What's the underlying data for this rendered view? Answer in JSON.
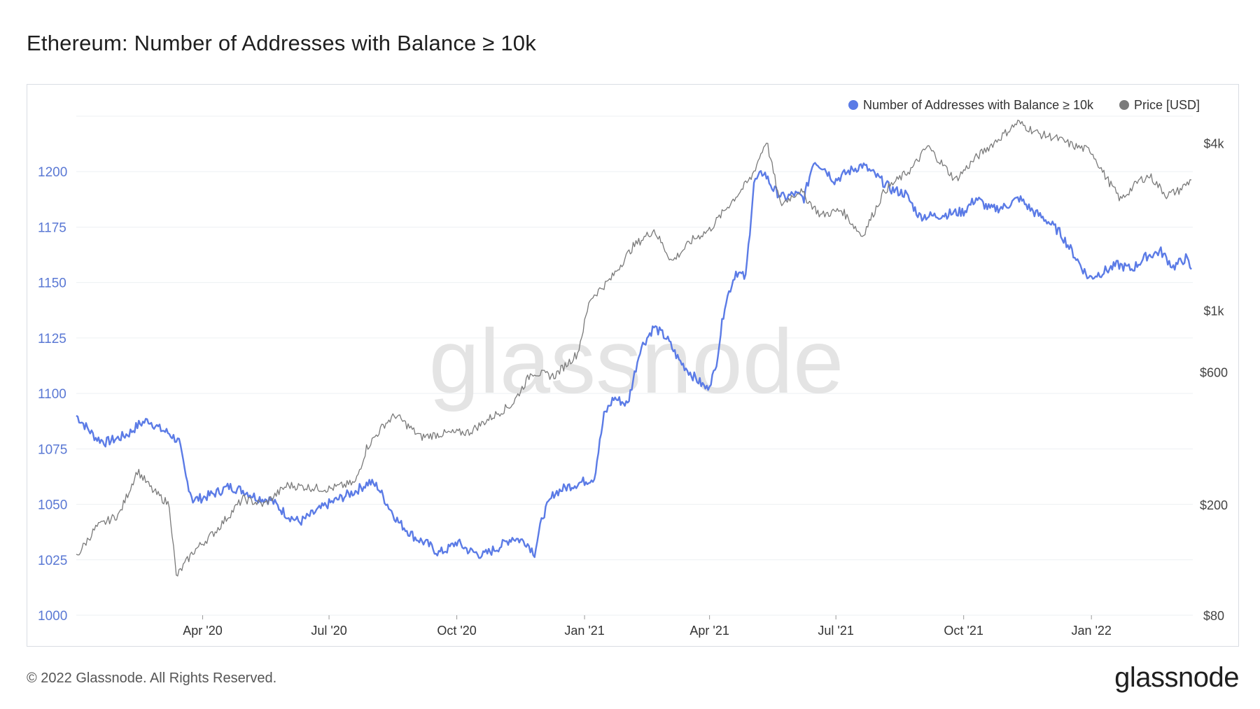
{
  "title": "Ethereum: Number of Addresses with Balance ≥ 10k",
  "footer": {
    "copyright": "© 2022 Glassnode. All Rights Reserved.",
    "logo": "glassnode"
  },
  "watermark": "glassnode",
  "chart_data": {
    "type": "line",
    "title": "Ethereum: Number of Addresses with Balance ≥ 10k",
    "legend_placement": "top-right",
    "grid": true,
    "x_tick_labels": [
      "Apr '20",
      "Jul '20",
      "Oct '20",
      "Jan '21",
      "Apr '21",
      "Jul '21",
      "Oct '21",
      "Jan '22"
    ],
    "x_tick_dates": [
      "2020-04-01",
      "2020-07-01",
      "2020-10-01",
      "2021-01-01",
      "2021-04-01",
      "2021-07-01",
      "2021-10-01",
      "2022-01-01"
    ],
    "xlim": [
      "2020-01-01",
      "2022-03-15"
    ],
    "y_left": {
      "label": "",
      "ticks": [
        "1000",
        "1025",
        "1050",
        "1075",
        "1100",
        "1125",
        "1150",
        "1175",
        "1200"
      ],
      "ylim": [
        1000,
        1225
      ]
    },
    "y_right": {
      "label": "",
      "scale": "log",
      "ticks": [
        {
          "label": "$80",
          "value": 80
        },
        {
          "label": "$200",
          "value": 200
        },
        {
          "label": "$600",
          "value": 600
        },
        {
          "label": "$1k",
          "value": 1000
        },
        {
          "label": "$4k",
          "value": 4000
        }
      ],
      "ylim": [
        80,
        5000
      ]
    },
    "series": [
      {
        "name": "Number of Addresses with Balance ≥ 10k",
        "color": "#5b7be6",
        "axis": "left",
        "points": [
          [
            "2020-01-01",
            1090
          ],
          [
            "2020-01-08",
            1085
          ],
          [
            "2020-01-15",
            1080
          ],
          [
            "2020-01-22",
            1078
          ],
          [
            "2020-02-01",
            1080
          ],
          [
            "2020-02-08",
            1082
          ],
          [
            "2020-02-15",
            1086
          ],
          [
            "2020-02-22",
            1088
          ],
          [
            "2020-03-01",
            1084
          ],
          [
            "2020-03-08",
            1082
          ],
          [
            "2020-03-15",
            1078
          ],
          [
            "2020-03-20",
            1062
          ],
          [
            "2020-03-25",
            1052
          ],
          [
            "2020-04-01",
            1053
          ],
          [
            "2020-04-10",
            1055
          ],
          [
            "2020-04-20",
            1058
          ],
          [
            "2020-05-01",
            1056
          ],
          [
            "2020-05-10",
            1053
          ],
          [
            "2020-05-20",
            1052
          ],
          [
            "2020-06-01",
            1045
          ],
          [
            "2020-06-10",
            1042
          ],
          [
            "2020-06-20",
            1046
          ],
          [
            "2020-06-30",
            1050
          ],
          [
            "2020-07-10",
            1053
          ],
          [
            "2020-07-20",
            1056
          ],
          [
            "2020-07-30",
            1060
          ],
          [
            "2020-08-05",
            1058
          ],
          [
            "2020-08-12",
            1050
          ],
          [
            "2020-08-20",
            1042
          ],
          [
            "2020-09-01",
            1035
          ],
          [
            "2020-09-10",
            1032
          ],
          [
            "2020-09-18",
            1028
          ],
          [
            "2020-09-25",
            1030
          ],
          [
            "2020-10-01",
            1033
          ],
          [
            "2020-10-10",
            1029
          ],
          [
            "2020-10-20",
            1027
          ],
          [
            "2020-11-01",
            1031
          ],
          [
            "2020-11-10",
            1035
          ],
          [
            "2020-11-20",
            1033
          ],
          [
            "2020-11-26",
            1028
          ],
          [
            "2020-12-02",
            1045
          ],
          [
            "2020-12-10",
            1055
          ],
          [
            "2020-12-20",
            1058
          ],
          [
            "2020-12-30",
            1060
          ],
          [
            "2021-01-08",
            1062
          ],
          [
            "2021-01-15",
            1090
          ],
          [
            "2021-01-22",
            1098
          ],
          [
            "2021-02-01",
            1095
          ],
          [
            "2021-02-10",
            1120
          ],
          [
            "2021-02-20",
            1130
          ],
          [
            "2021-03-01",
            1125
          ],
          [
            "2021-03-10",
            1115
          ],
          [
            "2021-03-20",
            1108
          ],
          [
            "2021-03-30",
            1102
          ],
          [
            "2021-04-05",
            1110
          ],
          [
            "2021-04-12",
            1140
          ],
          [
            "2021-04-20",
            1155
          ],
          [
            "2021-04-27",
            1152
          ],
          [
            "2021-05-03",
            1195
          ],
          [
            "2021-05-10",
            1200
          ],
          [
            "2021-05-17",
            1192
          ],
          [
            "2021-05-25",
            1188
          ],
          [
            "2021-06-01",
            1190
          ],
          [
            "2021-06-08",
            1188
          ],
          [
            "2021-06-15",
            1205
          ],
          [
            "2021-06-22",
            1202
          ],
          [
            "2021-06-30",
            1196
          ],
          [
            "2021-07-10",
            1200
          ],
          [
            "2021-07-20",
            1203
          ],
          [
            "2021-07-30",
            1198
          ],
          [
            "2021-08-10",
            1192
          ],
          [
            "2021-08-20",
            1190
          ],
          [
            "2021-08-30",
            1180
          ],
          [
            "2021-09-10",
            1180
          ],
          [
            "2021-09-20",
            1181
          ],
          [
            "2021-10-01",
            1182
          ],
          [
            "2021-10-10",
            1188
          ],
          [
            "2021-10-20",
            1183
          ],
          [
            "2021-10-30",
            1184
          ],
          [
            "2021-11-10",
            1188
          ],
          [
            "2021-11-20",
            1182
          ],
          [
            "2021-11-30",
            1178
          ],
          [
            "2021-12-10",
            1172
          ],
          [
            "2021-12-20",
            1162
          ],
          [
            "2021-12-30",
            1152
          ],
          [
            "2022-01-10",
            1155
          ],
          [
            "2022-01-20",
            1158
          ],
          [
            "2022-01-30",
            1156
          ],
          [
            "2022-02-10",
            1162
          ],
          [
            "2022-02-20",
            1164
          ],
          [
            "2022-03-01",
            1157
          ],
          [
            "2022-03-10",
            1161
          ],
          [
            "2022-03-14",
            1156
          ]
        ]
      },
      {
        "name": "Price [USD]",
        "color": "#7a7a7a",
        "axis": "right",
        "points": [
          [
            "2020-01-01",
            130
          ],
          [
            "2020-01-15",
            165
          ],
          [
            "2020-02-01",
            185
          ],
          [
            "2020-02-14",
            265
          ],
          [
            "2020-02-25",
            225
          ],
          [
            "2020-03-08",
            200
          ],
          [
            "2020-03-13",
            110
          ],
          [
            "2020-03-25",
            135
          ],
          [
            "2020-04-10",
            160
          ],
          [
            "2020-04-30",
            210
          ],
          [
            "2020-05-15",
            200
          ],
          [
            "2020-06-01",
            235
          ],
          [
            "2020-06-20",
            230
          ],
          [
            "2020-07-01",
            228
          ],
          [
            "2020-07-20",
            240
          ],
          [
            "2020-07-28",
            320
          ],
          [
            "2020-08-10",
            390
          ],
          [
            "2020-08-18",
            420
          ],
          [
            "2020-09-05",
            350
          ],
          [
            "2020-09-20",
            360
          ],
          [
            "2020-10-10",
            365
          ],
          [
            "2020-10-25",
            410
          ],
          [
            "2020-11-10",
            460
          ],
          [
            "2020-11-24",
            600
          ],
          [
            "2020-12-10",
            580
          ],
          [
            "2020-12-27",
            700
          ],
          [
            "2021-01-05",
            1100
          ],
          [
            "2021-01-20",
            1300
          ],
          [
            "2021-02-05",
            1700
          ],
          [
            "2021-02-20",
            1950
          ],
          [
            "2021-03-05",
            1500
          ],
          [
            "2021-03-20",
            1800
          ],
          [
            "2021-04-01",
            1950
          ],
          [
            "2021-04-15",
            2400
          ],
          [
            "2021-05-01",
            3000
          ],
          [
            "2021-05-12",
            4100
          ],
          [
            "2021-05-22",
            2400
          ],
          [
            "2021-06-05",
            2700
          ],
          [
            "2021-06-20",
            2200
          ],
          [
            "2021-07-05",
            2300
          ],
          [
            "2021-07-20",
            1850
          ],
          [
            "2021-08-05",
            2700
          ],
          [
            "2021-08-25",
            3250
          ],
          [
            "2021-09-05",
            3900
          ],
          [
            "2021-09-25",
            2950
          ],
          [
            "2021-10-10",
            3550
          ],
          [
            "2021-10-25",
            4100
          ],
          [
            "2021-11-09",
            4750
          ],
          [
            "2021-11-25",
            4300
          ],
          [
            "2021-12-05",
            4200
          ],
          [
            "2021-12-20",
            3900
          ],
          [
            "2022-01-01",
            3750
          ],
          [
            "2022-01-10",
            3100
          ],
          [
            "2022-01-22",
            2500
          ],
          [
            "2022-02-05",
            2950
          ],
          [
            "2022-02-12",
            3050
          ],
          [
            "2022-02-24",
            2600
          ],
          [
            "2022-03-05",
            2700
          ],
          [
            "2022-03-14",
            2950
          ]
        ]
      }
    ]
  }
}
